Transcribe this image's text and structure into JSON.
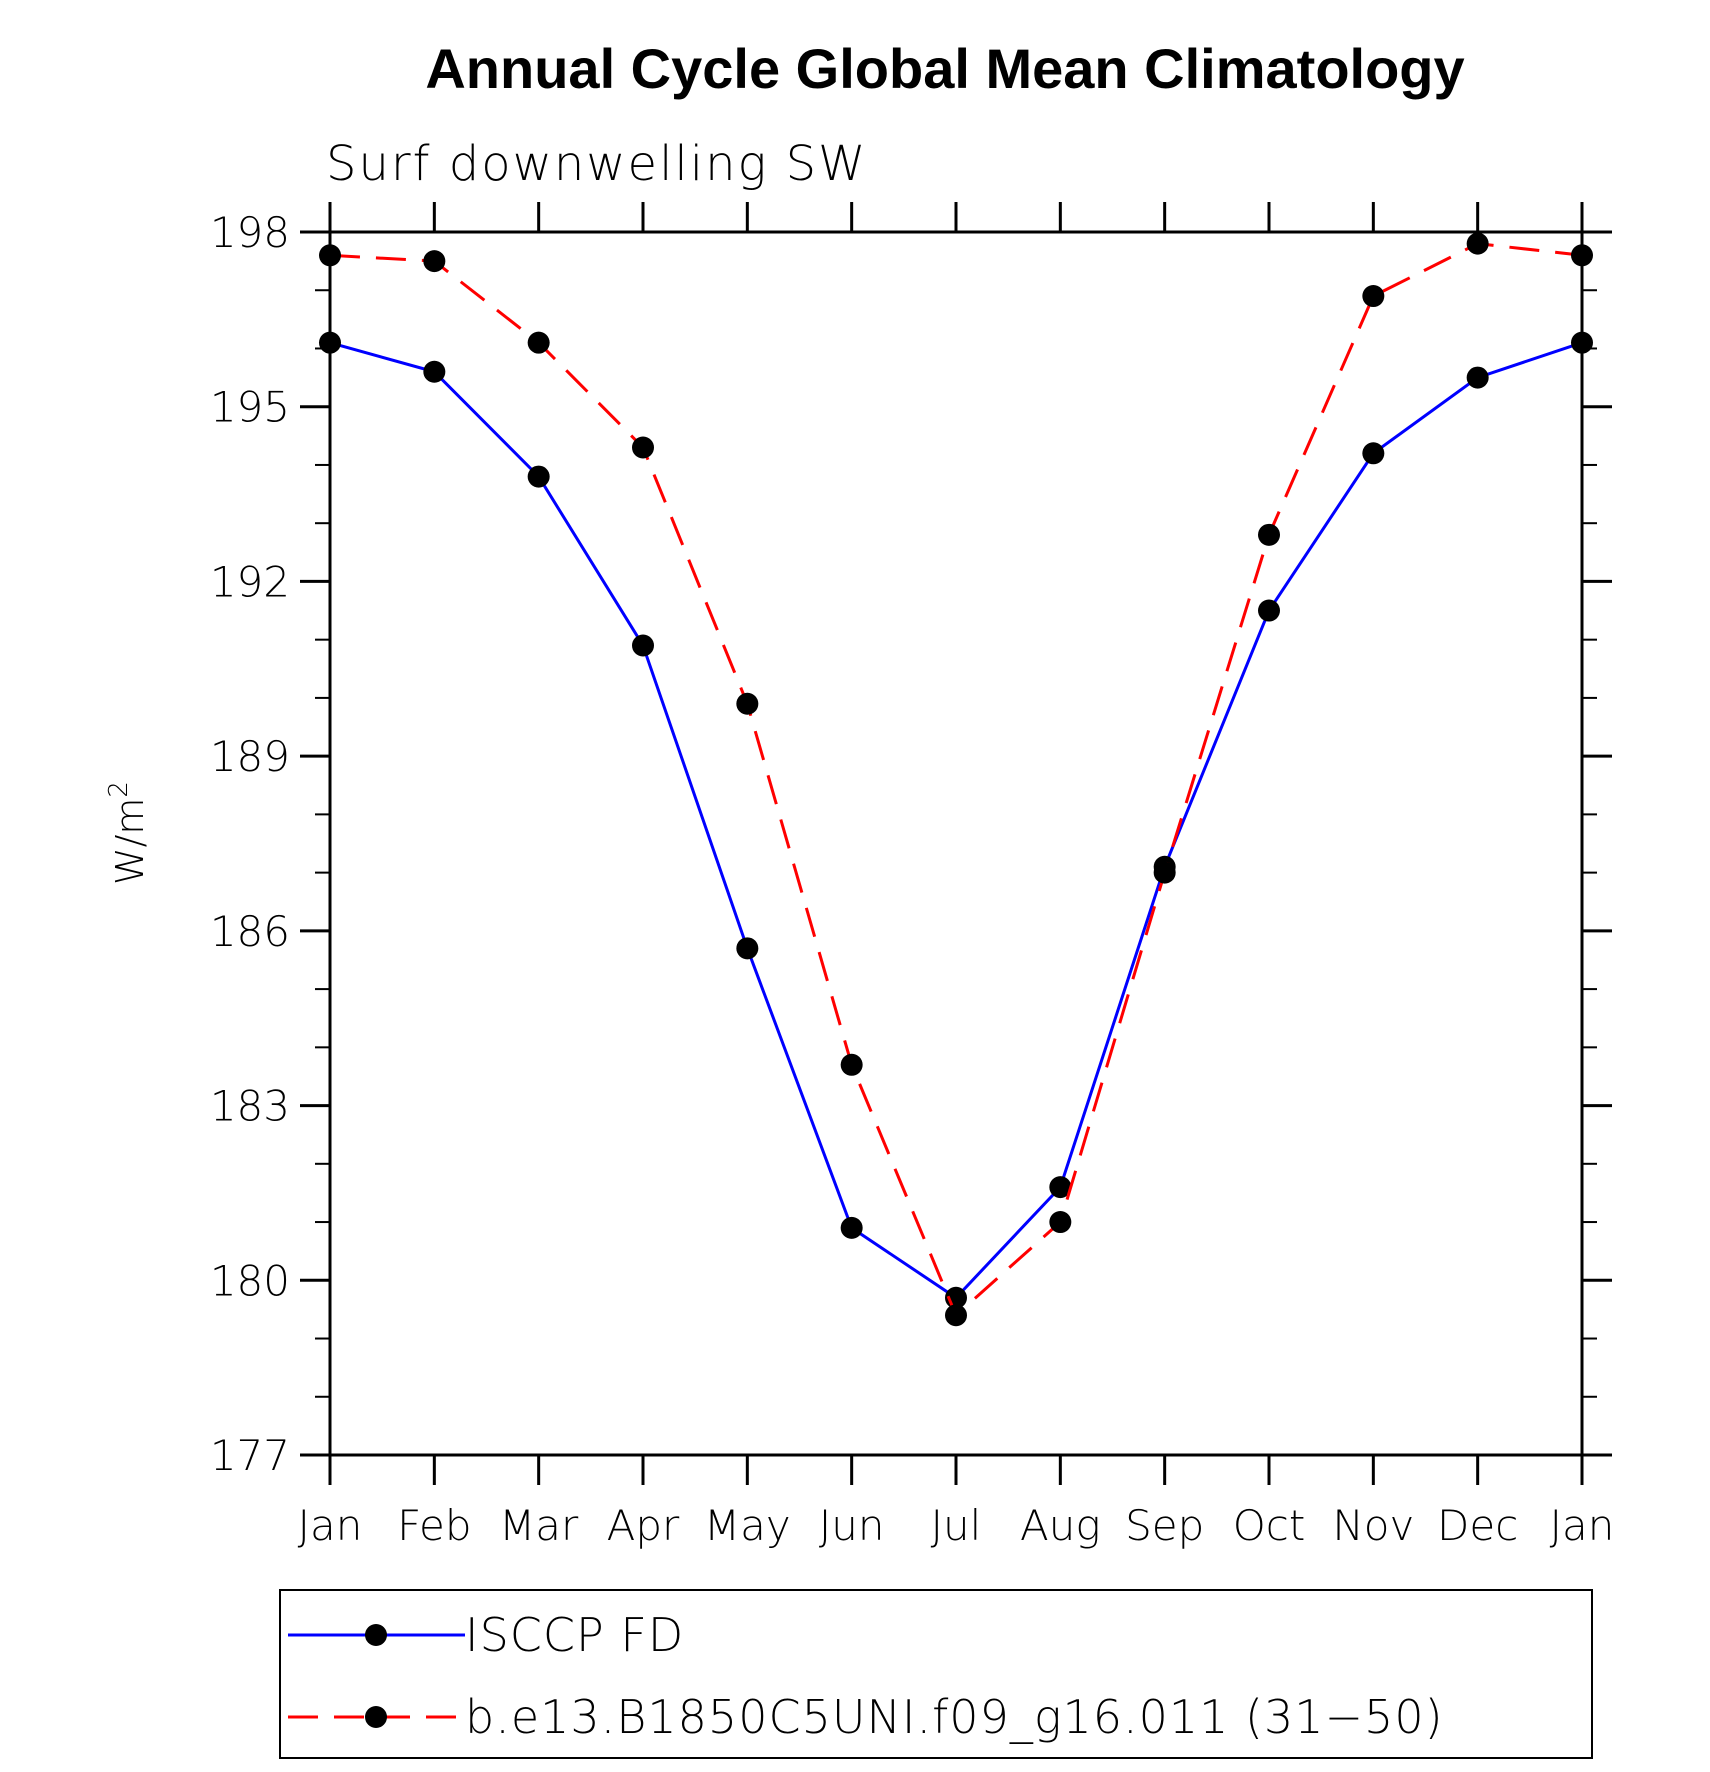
{
  "chart_data": {
    "type": "line",
    "title": "Annual Cycle Global Mean Climatology",
    "subtitle": "Surf downwelling SW",
    "ylabel": "W/m",
    "ylabel_sup": "2",
    "xlabel": "",
    "categories": [
      "Jan",
      "Feb",
      "Mar",
      "Apr",
      "May",
      "Jun",
      "Jul",
      "Aug",
      "Sep",
      "Oct",
      "Nov",
      "Dec",
      "Jan"
    ],
    "ylim": [
      177,
      198
    ],
    "yticks": [
      177,
      180,
      183,
      186,
      189,
      192,
      195,
      198
    ],
    "ytick_labels": [
      "177",
      "180",
      "183",
      "186",
      "189",
      "192",
      "195",
      "198"
    ],
    "y_minor_step": 1,
    "grid": false,
    "legend_position": "bottom",
    "series": [
      {
        "name": "ISCCP FD",
        "color": "#0000ff",
        "dash": "solid",
        "marker": "filled-circle",
        "values": [
          196.1,
          195.6,
          193.8,
          190.9,
          185.7,
          180.9,
          179.7,
          181.6,
          187.1,
          191.5,
          194.2,
          195.5,
          196.1
        ]
      },
      {
        "name": "b.e13.B1850C5UNI.f09_g16.011 (31−50)",
        "color": "#ff0000",
        "dash": "dashed",
        "marker": "filled-circle",
        "values": [
          197.6,
          197.5,
          196.1,
          194.3,
          189.9,
          183.7,
          179.4,
          181.0,
          187.0,
          192.8,
          196.9,
          197.8,
          197.6
        ]
      }
    ]
  }
}
